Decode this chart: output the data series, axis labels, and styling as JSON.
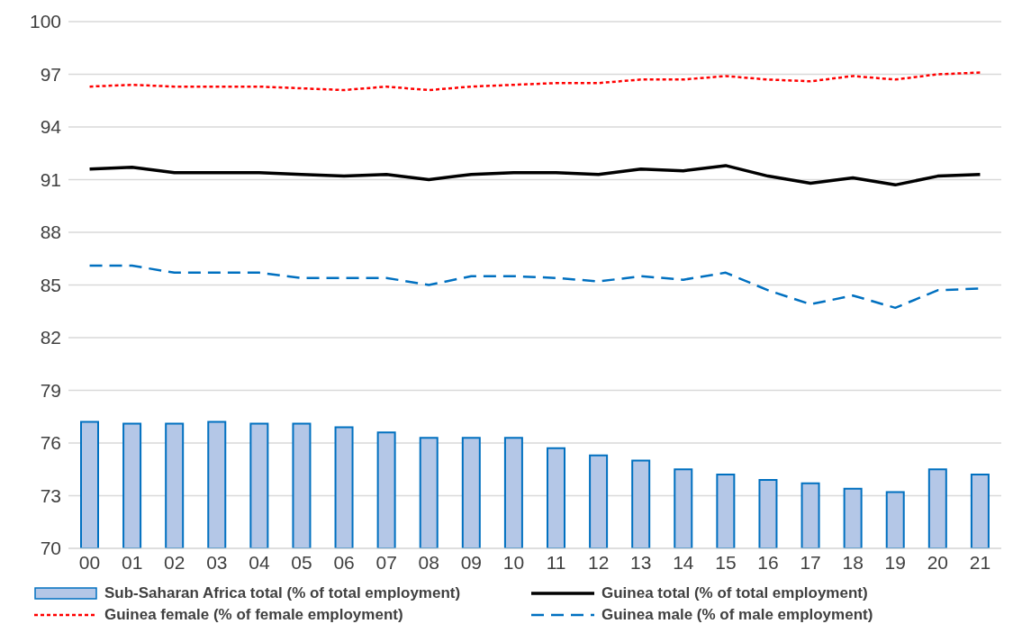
{
  "chart_data": {
    "type": "bar",
    "categories": [
      "00",
      "01",
      "02",
      "03",
      "04",
      "05",
      "06",
      "07",
      "08",
      "09",
      "10",
      "11",
      "12",
      "13",
      "14",
      "15",
      "16",
      "17",
      "18",
      "19",
      "20",
      "21"
    ],
    "series": [
      {
        "name": "Sub-Saharan Africa total (% of total employment)",
        "color": "#b4c7e7",
        "values": [
          77.2,
          77.1,
          77.1,
          77.2,
          77.1,
          77.1,
          76.9,
          76.6,
          76.3,
          76.3,
          76.3,
          75.7,
          75.3,
          75.0,
          74.5,
          74.2,
          73.9,
          73.7,
          73.4,
          73.2,
          74.5,
          74.2
        ]
      },
      {
        "name": "Guinea total (% of total employment)",
        "type": "line",
        "color": "#000000",
        "line_style": "solid",
        "values": [
          91.6,
          91.7,
          91.4,
          91.4,
          91.4,
          91.3,
          91.2,
          91.3,
          91.0,
          91.3,
          91.4,
          91.4,
          91.3,
          91.6,
          91.5,
          91.8,
          91.2,
          90.8,
          91.1,
          90.7,
          91.2,
          91.3
        ]
      },
      {
        "name": "Guinea female (% of female employment)",
        "type": "line",
        "color": "#ff0000",
        "line_style": "dotted",
        "values": [
          96.3,
          96.4,
          96.3,
          96.3,
          96.3,
          96.2,
          96.1,
          96.3,
          96.1,
          96.3,
          96.4,
          96.5,
          96.5,
          96.7,
          96.7,
          96.9,
          96.7,
          96.6,
          96.9,
          96.7,
          97.0,
          97.1
        ]
      },
      {
        "name": "Guinea male (% of male employment)",
        "type": "line",
        "color": "#0070c0",
        "line_style": "dashed",
        "values": [
          86.1,
          86.1,
          85.7,
          85.7,
          85.7,
          85.4,
          85.4,
          85.4,
          85.0,
          85.5,
          85.5,
          85.4,
          85.2,
          85.5,
          85.3,
          85.7,
          84.7,
          83.9,
          84.4,
          83.7,
          84.7,
          84.8
        ]
      }
    ],
    "ylim": [
      70,
      100
    ],
    "yticks": [
      70,
      73,
      76,
      79,
      82,
      85,
      88,
      91,
      94,
      97,
      100
    ],
    "grid": "y",
    "legend": "bottom",
    "marker": "none"
  }
}
